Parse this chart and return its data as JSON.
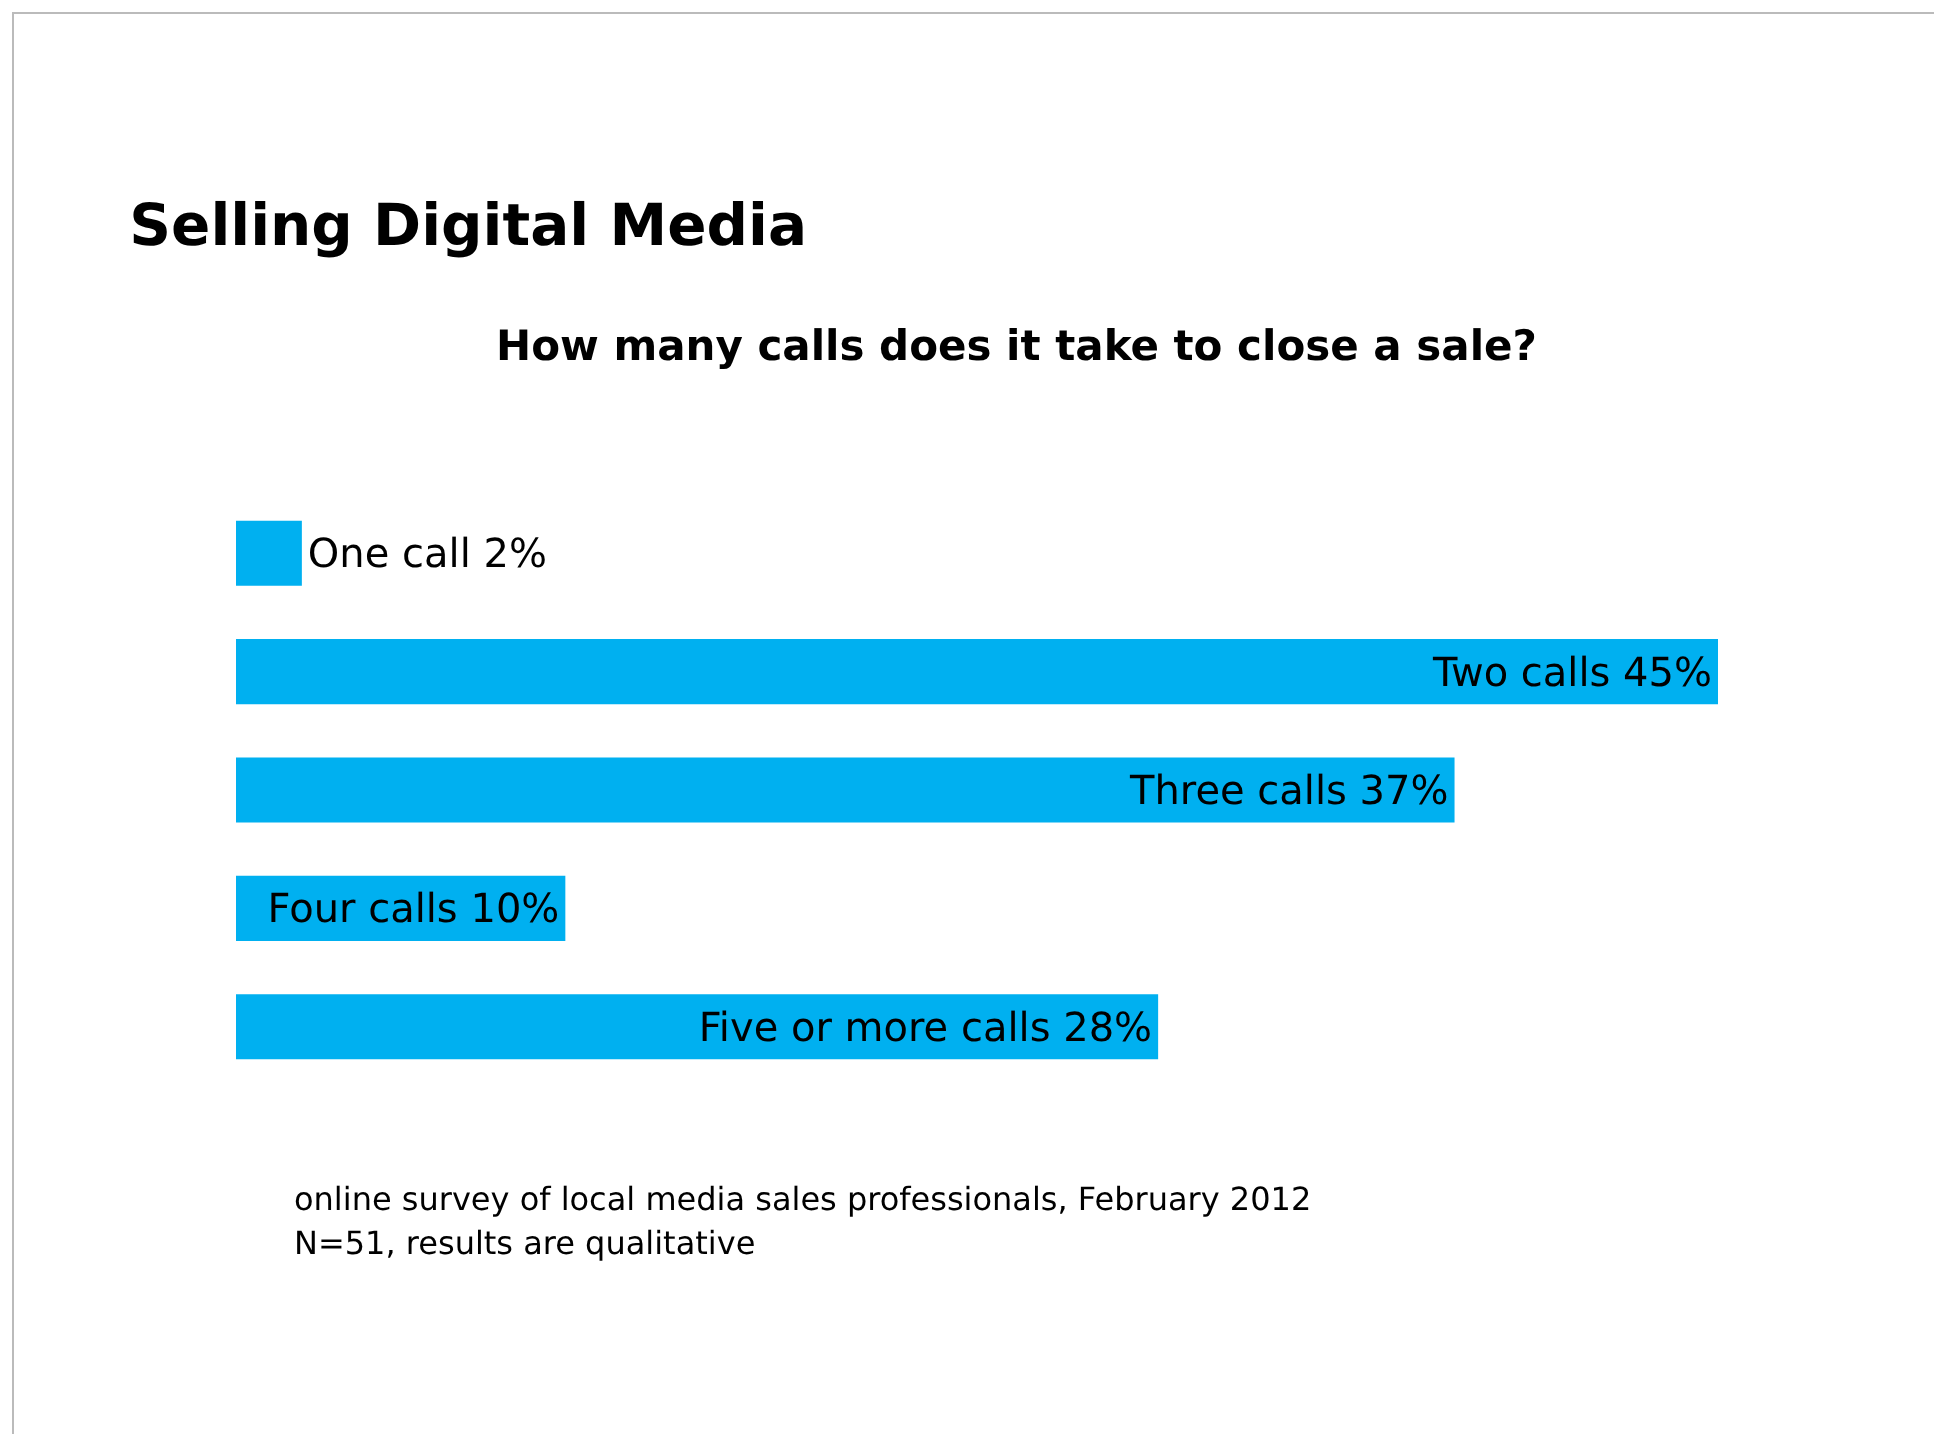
{
  "chart_data": {
    "type": "bar",
    "orientation": "horizontal",
    "title": "Selling Digital Media",
    "subtitle": "How many calls does it take to close a sale?",
    "categories": [
      null,
      null,
      null,
      null,
      null
    ],
    "values": [
      2,
      45,
      37,
      10,
      28
    ],
    "value_labels": [
      "One call 2%",
      "Two calls 45%",
      "Three calls 37%",
      "Four calls 10%",
      "Five or more calls 28%"
    ],
    "color": "#00b0f0",
    "grid": false,
    "legend": false,
    "annotations": [
      "online survey of local media sales professionals, February 2012",
      "N=51, results are qualitative"
    ]
  }
}
